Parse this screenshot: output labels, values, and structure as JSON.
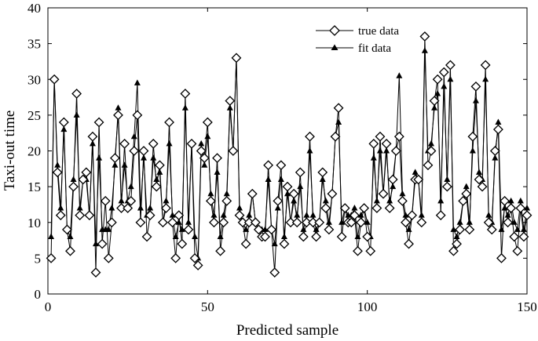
{
  "chart_data": {
    "type": "line",
    "title": "",
    "xlabel": "Predicted sample",
    "ylabel": "Taxi-out time",
    "xlim": [
      0,
      150
    ],
    "ylim": [
      0,
      40
    ],
    "xticks": [
      0,
      50,
      100,
      150
    ],
    "yticks": [
      0,
      5,
      10,
      15,
      20,
      25,
      30,
      35,
      40
    ],
    "grid": false,
    "legend_position": "top-right",
    "series": [
      {
        "name": "true data",
        "marker": "diamond",
        "color": "#000000",
        "x": [
          1,
          2,
          3,
          4,
          5,
          6,
          7,
          8,
          9,
          10,
          11,
          12,
          13,
          14,
          15,
          16,
          17,
          18,
          19,
          20,
          21,
          22,
          23,
          24,
          25,
          26,
          27,
          28,
          29,
          30,
          31,
          32,
          33,
          34,
          35,
          36,
          37,
          38,
          39,
          40,
          41,
          42,
          43,
          44,
          45,
          46,
          47,
          48,
          49,
          50,
          51,
          52,
          53,
          54,
          55,
          56,
          57,
          58,
          59,
          60,
          61,
          62,
          63,
          64,
          65,
          66,
          67,
          68,
          69,
          70,
          71,
          72,
          73,
          74,
          75,
          76,
          77,
          78,
          79,
          80,
          81,
          82,
          83,
          84,
          85,
          86,
          87,
          88,
          89,
          90,
          91,
          92,
          93,
          94,
          95,
          96,
          97,
          98,
          99,
          100,
          101,
          102,
          103,
          104,
          105,
          106,
          107,
          108,
          109,
          110,
          111,
          112,
          113,
          114,
          115,
          116,
          117,
          118,
          119,
          120,
          121,
          122,
          123,
          124,
          125,
          126,
          127,
          128,
          129,
          130,
          131,
          132,
          133,
          134,
          135,
          136,
          137,
          138,
          139,
          140,
          141,
          142,
          143,
          144,
          145,
          146,
          147,
          148,
          149,
          150
        ],
        "values": [
          5,
          30,
          17,
          11,
          24,
          9,
          6,
          15,
          28,
          11,
          16,
          17,
          11,
          22,
          3,
          24,
          7,
          13,
          5,
          10,
          19,
          25,
          12,
          21,
          12,
          13,
          20,
          25,
          10,
          20,
          8,
          11,
          21,
          15,
          18,
          10,
          12,
          24,
          10,
          5,
          11,
          7,
          28,
          9,
          21,
          5,
          4,
          20,
          19,
          24,
          13,
          10,
          19,
          6,
          10,
          13,
          27,
          20,
          33,
          11,
          10,
          7,
          10,
          14,
          10,
          9,
          8,
          8,
          18,
          9,
          3,
          13,
          18,
          7,
          15,
          10,
          14,
          10,
          17,
          8,
          10,
          22,
          10,
          8,
          10,
          17,
          12,
          9,
          14,
          22,
          26,
          8,
          12,
          10,
          10,
          11,
          6,
          10,
          12,
          8,
          6,
          21,
          12,
          22,
          14,
          21,
          12,
          16,
          20,
          22,
          13,
          10,
          7,
          11,
          16,
          16,
          10,
          36,
          18,
          20,
          27,
          30,
          11,
          31,
          15,
          32,
          6,
          7,
          9,
          13,
          14,
          9,
          22,
          29,
          16,
          15,
          32,
          10,
          9,
          20,
          23,
          5,
          13,
          10,
          12,
          8,
          6,
          12,
          8,
          11
        ]
      },
      {
        "name": "fit data",
        "marker": "triangle",
        "color": "#000000",
        "x": [
          1,
          2,
          3,
          4,
          5,
          6,
          7,
          8,
          9,
          10,
          11,
          12,
          13,
          14,
          15,
          16,
          17,
          18,
          19,
          20,
          21,
          22,
          23,
          24,
          25,
          26,
          27,
          28,
          29,
          30,
          31,
          32,
          33,
          34,
          35,
          36,
          37,
          38,
          39,
          40,
          41,
          42,
          43,
          44,
          45,
          46,
          47,
          48,
          49,
          50,
          51,
          52,
          53,
          54,
          55,
          56,
          57,
          58,
          59,
          60,
          61,
          62,
          63,
          64,
          65,
          66,
          67,
          68,
          69,
          70,
          71,
          72,
          73,
          74,
          75,
          76,
          77,
          78,
          79,
          80,
          81,
          82,
          83,
          84,
          85,
          86,
          87,
          88,
          89,
          90,
          91,
          92,
          93,
          94,
          95,
          96,
          97,
          98,
          99,
          100,
          101,
          102,
          103,
          104,
          105,
          106,
          107,
          108,
          109,
          110,
          111,
          112,
          113,
          114,
          115,
          116,
          117,
          118,
          119,
          120,
          121,
          122,
          123,
          124,
          125,
          126,
          127,
          128,
          129,
          130,
          131,
          132,
          133,
          134,
          135,
          136,
          137,
          138,
          139,
          140,
          141,
          142,
          143,
          144,
          145,
          146,
          147,
          148,
          149,
          150
        ],
        "values": [
          8,
          30,
          18,
          12,
          23,
          9,
          8,
          16,
          25,
          12,
          16,
          16,
          11,
          21,
          7,
          19,
          9,
          9,
          9,
          12,
          18,
          26,
          13,
          18,
          13,
          15,
          22,
          29.5,
          12,
          19,
          11,
          12,
          19,
          16,
          17,
          10,
          13,
          21,
          11,
          8,
          10,
          9,
          26,
          10,
          21,
          8,
          5,
          21,
          18,
          22,
          14,
          11,
          17,
          8,
          11,
          14,
          26,
          20,
          33,
          12,
          10,
          9,
          11,
          14,
          10,
          9,
          9,
          9,
          16,
          9,
          7,
          12,
          16,
          8,
          14,
          10,
          13,
          11,
          15,
          9,
          11,
          20,
          11,
          9,
          10,
          16,
          13,
          10,
          14,
          22,
          24,
          10,
          12,
          11,
          11,
          12,
          8,
          11,
          12,
          10,
          8,
          19,
          13,
          20,
          14,
          20,
          13,
          15,
          20,
          30.5,
          14,
          11,
          9,
          11,
          17,
          16,
          11,
          34,
          20,
          21,
          26,
          28,
          13,
          29,
          16,
          30,
          9,
          8,
          10,
          13,
          15,
          10,
          20,
          27,
          17,
          16,
          30,
          11,
          10,
          19,
          24,
          9,
          12,
          11,
          13,
          10,
          9,
          13,
          9,
          12
        ]
      }
    ]
  }
}
